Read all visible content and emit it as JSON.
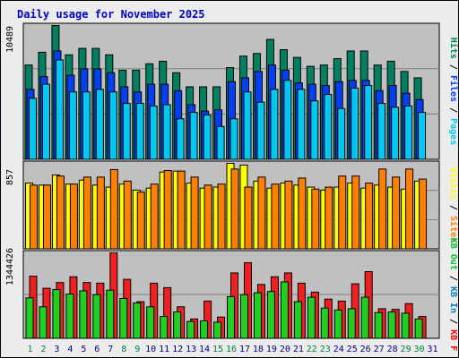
{
  "title": "Daily usage for November 2025",
  "colors": {
    "page_background": "#ececec",
    "panel_background": "#c0c0c0",
    "title_text": "#0000c0",
    "pages": "#00c8f0",
    "files": "#0040f0",
    "hits": "#008060",
    "visits": "#ffff00",
    "sites": "#ff8000",
    "kb_in": "#0080c0",
    "kb_out": "#00c040",
    "kb_f": "#ff0000",
    "kbf_bar": "#f02020",
    "kb_bar_green": "#20d020",
    "weekend_label": "#008040",
    "weekday_label": "#000080",
    "grid": "#808080"
  },
  "chart_data": [
    {
      "type": "bar",
      "panel": "hits-files-pages",
      "ylabel_max": "10489",
      "ylim": [
        0,
        10489
      ],
      "legend": [
        {
          "name": "Pages",
          "color": "pages"
        },
        {
          "name": "Files",
          "color": "files"
        },
        {
          "name": "Hits",
          "color": "hits"
        }
      ],
      "categories": [
        "1",
        "2",
        "3",
        "4",
        "5",
        "6",
        "7",
        "8",
        "9",
        "10",
        "11",
        "12",
        "13",
        "14",
        "15",
        "16",
        "17",
        "18",
        "19",
        "20",
        "21",
        "22",
        "23",
        "24",
        "25",
        "26",
        "27",
        "28",
        "29",
        "30",
        "31"
      ],
      "series": [
        {
          "name": "Hits",
          "values": [
            7400,
            8400,
            10489,
            8200,
            8700,
            8700,
            8200,
            7000,
            7000,
            7500,
            7700,
            6800,
            5700,
            5700,
            5700,
            7200,
            8100,
            8300,
            9400,
            8600,
            8000,
            7300,
            7400,
            7900,
            8500,
            8500,
            7400,
            7700,
            6900,
            6400,
            0
          ]
        },
        {
          "name": "Files",
          "values": [
            5500,
            6500,
            8500,
            6600,
            7100,
            7100,
            6800,
            5700,
            5300,
            5900,
            5900,
            5400,
            4300,
            3800,
            3900,
            6100,
            6400,
            6900,
            7400,
            7000,
            6000,
            5900,
            5800,
            6100,
            6200,
            6200,
            5400,
            5800,
            5200,
            4700,
            0
          ]
        },
        {
          "name": "Pages",
          "values": [
            4800,
            5900,
            7800,
            5300,
            5300,
            5500,
            5300,
            4400,
            4400,
            4200,
            4300,
            3200,
            3700,
            3500,
            2600,
            3200,
            5300,
            4500,
            5500,
            6200,
            5500,
            4600,
            5100,
            4000,
            5600,
            5800,
            4400,
            4100,
            4200,
            3700,
            0
          ]
        }
      ]
    },
    {
      "type": "bar",
      "panel": "sites-visits",
      "ylabel_max": "857",
      "ylim": [
        0,
        857
      ],
      "legend": [
        {
          "name": "Sites",
          "color": "sites"
        },
        {
          "name": "Visits",
          "color": "visits"
        }
      ],
      "categories": [
        "1",
        "2",
        "3",
        "4",
        "5",
        "6",
        "7",
        "8",
        "9",
        "10",
        "11",
        "12",
        "13",
        "14",
        "15",
        "16",
        "17",
        "18",
        "19",
        "20",
        "21",
        "22",
        "23",
        "24",
        "25",
        "26",
        "27",
        "28",
        "29",
        "30",
        "31"
      ],
      "series": [
        {
          "name": "Visits",
          "values": [
            660,
            640,
            740,
            650,
            690,
            640,
            620,
            650,
            590,
            610,
            770,
            780,
            660,
            610,
            620,
            857,
            840,
            680,
            610,
            660,
            640,
            620,
            590,
            620,
            660,
            610,
            640,
            620,
            600,
            680,
            0
          ]
        },
        {
          "name": "Sites",
          "values": [
            640,
            640,
            730,
            650,
            720,
            720,
            795,
            680,
            570,
            650,
            785,
            780,
            720,
            640,
            650,
            800,
            620,
            720,
            650,
            680,
            710,
            600,
            620,
            730,
            730,
            660,
            800,
            720,
            800,
            700,
            0
          ]
        }
      ]
    },
    {
      "type": "bar",
      "panel": "kb",
      "ylabel_max": "1344426",
      "ylim": [
        0,
        1344426
      ],
      "legend": [
        {
          "name": "KB F",
          "color": "kb_f"
        },
        {
          "name": "KB In",
          "color": "kb_in"
        },
        {
          "name": "KB Out",
          "color": "kb_out"
        }
      ],
      "categories": [
        "1",
        "2",
        "3",
        "4",
        "5",
        "6",
        "7",
        "8",
        "9",
        "10",
        "11",
        "12",
        "13",
        "14",
        "15",
        "16",
        "17",
        "18",
        "19",
        "20",
        "21",
        "22",
        "23",
        "24",
        "25",
        "26",
        "27",
        "28",
        "29",
        "30",
        "31"
      ],
      "series": [
        {
          "name": "KB F",
          "values": [
            980000,
            790000,
            880000,
            970000,
            880000,
            870000,
            1344426,
            930000,
            580000,
            870000,
            800000,
            500000,
            310000,
            590000,
            340000,
            1030000,
            1190000,
            850000,
            970000,
            1030000,
            870000,
            730000,
            620000,
            590000,
            860000,
            1050000,
            470000,
            460000,
            550000,
            350000,
            0
          ]
        },
        {
          "name": "KB Out",
          "values": [
            640000,
            500000,
            770000,
            700000,
            750000,
            690000,
            760000,
            630000,
            560000,
            500000,
            350000,
            420000,
            270000,
            280000,
            260000,
            660000,
            690000,
            720000,
            740000,
            890000,
            580000,
            650000,
            480000,
            450000,
            470000,
            650000,
            410000,
            420000,
            400000,
            310000,
            0
          ]
        }
      ]
    }
  ],
  "x_labels": [
    "1",
    "2",
    "3",
    "4",
    "5",
    "6",
    "7",
    "8",
    "9",
    "10",
    "11",
    "12",
    "13",
    "14",
    "15",
    "16",
    "17",
    "18",
    "19",
    "20",
    "21",
    "22",
    "23",
    "24",
    "25",
    "26",
    "27",
    "28",
    "29",
    "30",
    "31"
  ],
  "weekend_days": [
    1,
    2,
    8,
    9,
    15,
    16,
    22,
    23,
    29,
    30
  ]
}
